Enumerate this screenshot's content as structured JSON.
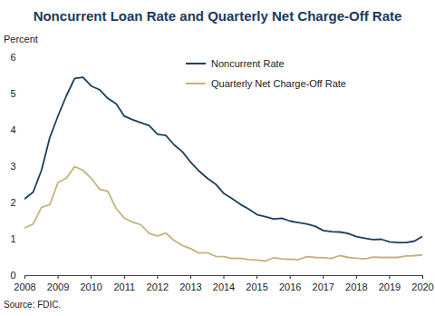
{
  "chart_data": {
    "type": "line",
    "title": "Noncurrent Loan Rate and Quarterly Net Charge-Off Rate",
    "y_label": "Percent",
    "source": "Source: FDIC.",
    "x": [
      2008.0,
      2008.25,
      2008.5,
      2008.75,
      2009.0,
      2009.25,
      2009.5,
      2009.75,
      2010.0,
      2010.25,
      2010.5,
      2010.75,
      2011.0,
      2011.25,
      2011.5,
      2011.75,
      2012.0,
      2012.25,
      2012.5,
      2012.75,
      2013.0,
      2013.25,
      2013.5,
      2013.75,
      2014.0,
      2014.25,
      2014.5,
      2014.75,
      2015.0,
      2015.25,
      2015.5,
      2015.75,
      2016.0,
      2016.25,
      2016.5,
      2016.75,
      2017.0,
      2017.25,
      2017.5,
      2017.75,
      2018.0,
      2018.25,
      2018.5,
      2018.75,
      2019.0,
      2019.25,
      2019.5,
      2019.75,
      2020.0
    ],
    "series": [
      {
        "name": "Noncurrent Rate",
        "color": "#1d3f5e",
        "values": [
          2.12,
          2.3,
          2.9,
          3.8,
          4.4,
          4.95,
          5.43,
          5.46,
          5.22,
          5.12,
          4.88,
          4.73,
          4.39,
          4.29,
          4.21,
          4.13,
          3.89,
          3.86,
          3.6,
          3.41,
          3.12,
          2.88,
          2.68,
          2.52,
          2.26,
          2.12,
          1.96,
          1.83,
          1.68,
          1.62,
          1.56,
          1.58,
          1.5,
          1.46,
          1.42,
          1.36,
          1.24,
          1.21,
          1.2,
          1.16,
          1.07,
          1.03,
          0.99,
          1.0,
          0.93,
          0.91,
          0.91,
          0.95,
          1.08
        ]
      },
      {
        "name": "Quarterly Net Charge-Off Rate",
        "color": "#c4b27f",
        "values": [
          1.32,
          1.42,
          1.88,
          1.95,
          2.57,
          2.68,
          3.0,
          2.9,
          2.68,
          2.38,
          2.32,
          1.85,
          1.58,
          1.47,
          1.4,
          1.16,
          1.09,
          1.17,
          0.97,
          0.83,
          0.74,
          0.62,
          0.63,
          0.53,
          0.52,
          0.47,
          0.48,
          0.44,
          0.43,
          0.4,
          0.49,
          0.46,
          0.45,
          0.44,
          0.52,
          0.5,
          0.49,
          0.47,
          0.55,
          0.5,
          0.48,
          0.46,
          0.51,
          0.5,
          0.5,
          0.5,
          0.54,
          0.55,
          0.57
        ]
      }
    ],
    "xlim": [
      2008,
      2020
    ],
    "xticks": [
      2008,
      2009,
      2010,
      2011,
      2012,
      2013,
      2014,
      2015,
      2016,
      2017,
      2018,
      2019,
      2020
    ],
    "ylim": [
      0,
      6
    ],
    "yticks": [
      0,
      1,
      2,
      3,
      4,
      5,
      6
    ],
    "grid": false,
    "legend": "top"
  }
}
